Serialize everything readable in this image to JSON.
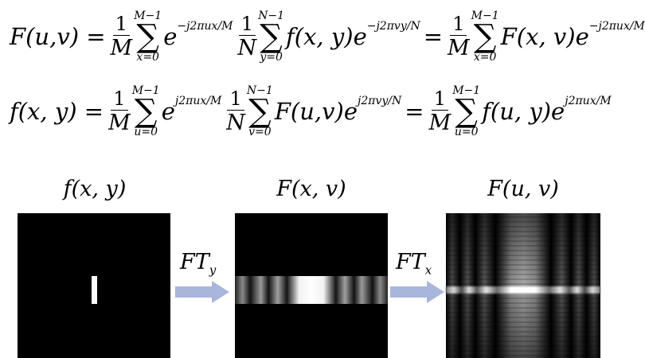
{
  "equations": {
    "row1": {
      "lhs": "F(u,v) =",
      "frac1": {
        "num": "1",
        "den": "M"
      },
      "sum1": {
        "upper": "M−1",
        "lower": "x=0"
      },
      "term1": "e",
      "exp1": "−j2πux/M",
      "frac2": {
        "num": "1",
        "den": "N"
      },
      "sum2": {
        "upper": "N−1",
        "lower": "y=0"
      },
      "term2": "f(x, y)e",
      "exp2": "−j2πvy/N",
      "eq2": "=",
      "frac3": {
        "num": "1",
        "den": "M"
      },
      "sum3": {
        "upper": "M−1",
        "lower": "x=0"
      },
      "term3": "F(x, v)e",
      "exp3": "−j2πux/M"
    },
    "row2": {
      "lhs": "f(x, y) =",
      "frac1": {
        "num": "1",
        "den": "M"
      },
      "sum1": {
        "upper": "M−1",
        "lower": "u=0"
      },
      "term1": "e",
      "exp1": "j2πux/M",
      "frac2": {
        "num": "1",
        "den": "N"
      },
      "sum2": {
        "upper": "N−1",
        "lower": "v=0"
      },
      "term2": "F(u,v)e",
      "exp2": "j2πvy/N",
      "eq2": "=",
      "frac3": {
        "num": "1",
        "den": "M"
      },
      "sum3": {
        "upper": "M−1",
        "lower": "u=0"
      },
      "term3": "f(u, y)e",
      "exp3": "j2πux/M"
    }
  },
  "panels": {
    "spatial_label": "f(x, y)",
    "intermediate_label": "F(x, v)",
    "frequency_label": "F(u, v)"
  },
  "arrows": {
    "ft_y": {
      "main": "FT",
      "sub": "y",
      "color": "#a9b6dc"
    },
    "ft_x": {
      "main": "FT",
      "sub": "x",
      "color": "#a9b6dc"
    }
  }
}
